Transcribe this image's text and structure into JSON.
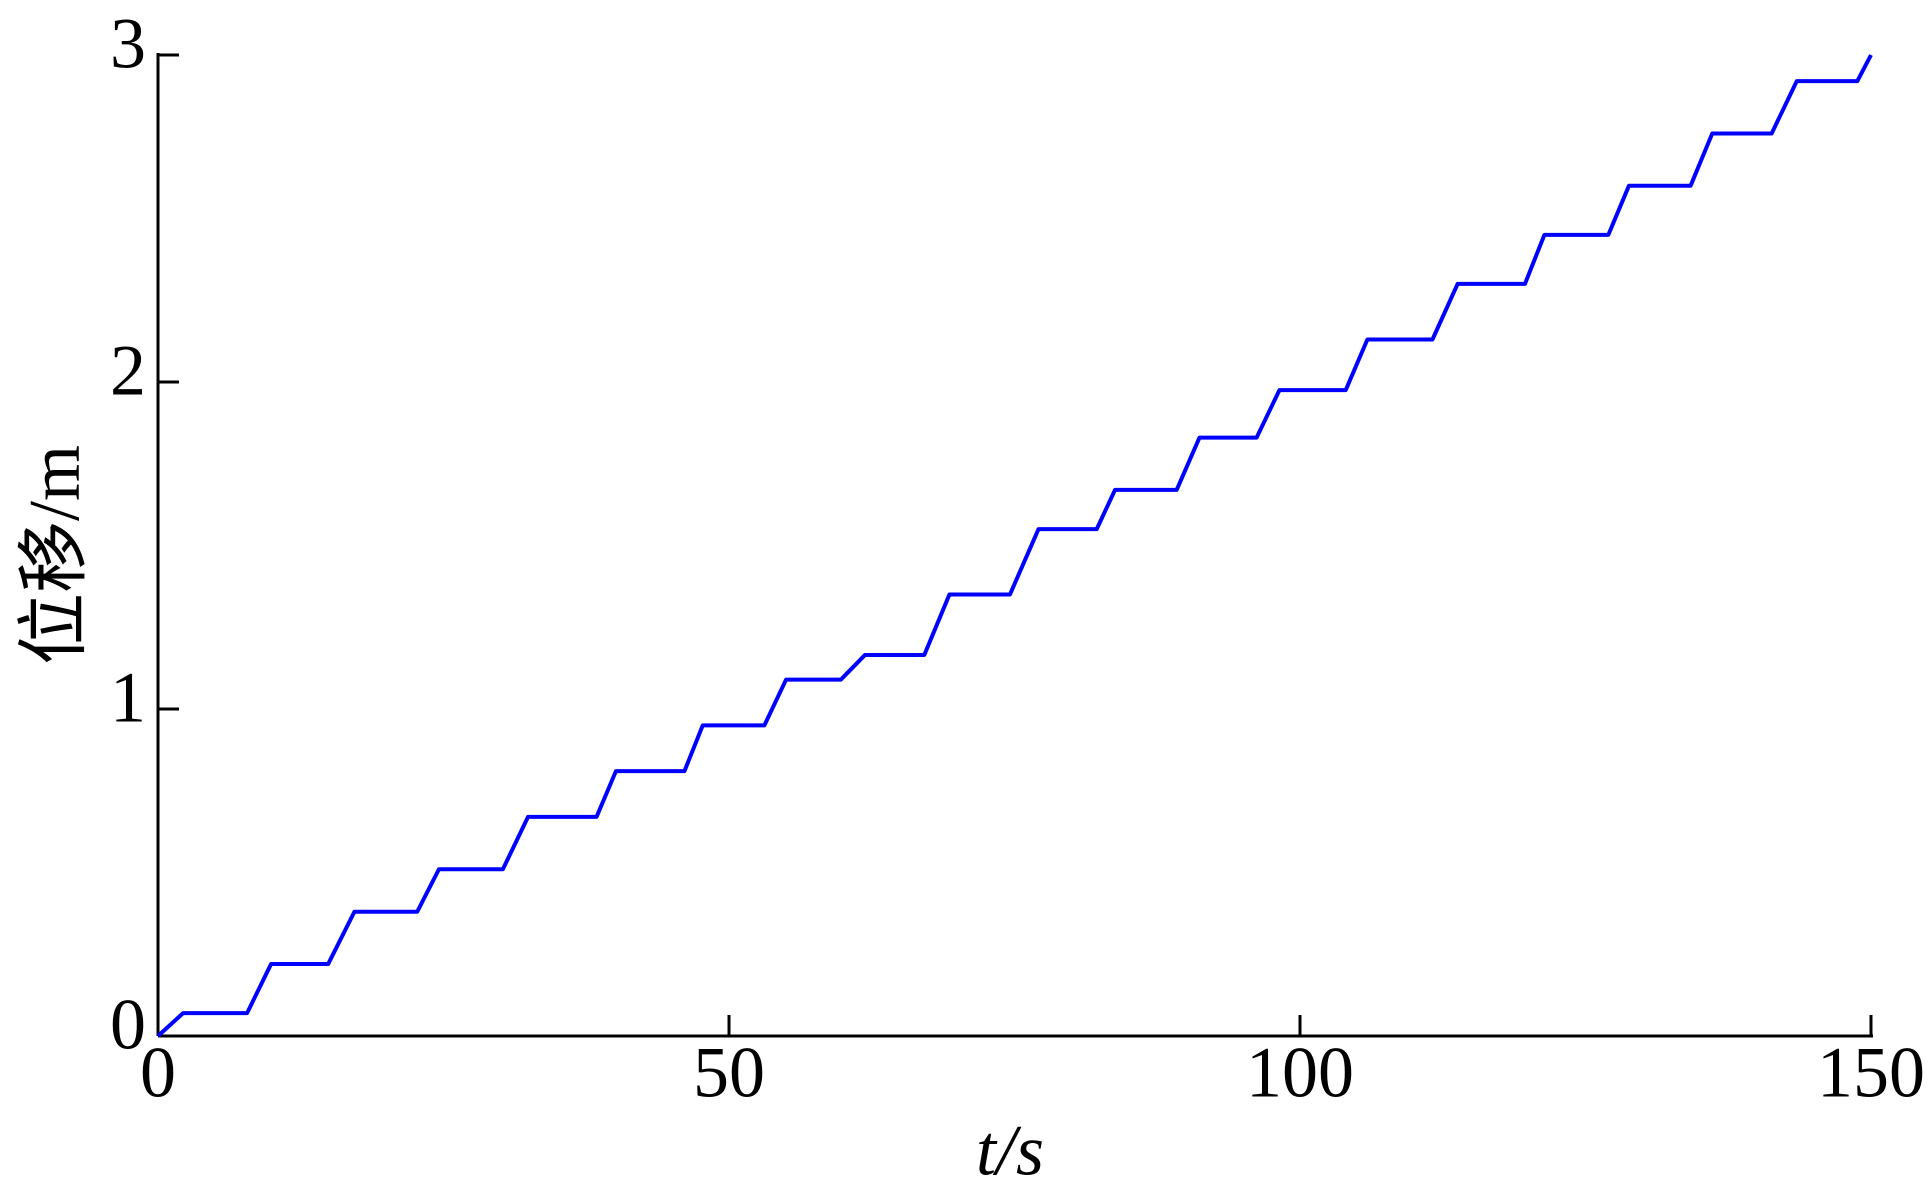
{
  "chart_data": {
    "type": "line",
    "xlabel": "t/s",
    "ylabel": "位移/m",
    "x": [
      0,
      2.2,
      7.8,
      9.9,
      14.9,
      17.2,
      22.7,
      24.6,
      30.2,
      32.4,
      38.4,
      40.1,
      46.1,
      47.7,
      53.1,
      55.0,
      59.8,
      61.9,
      67.1,
      69.3,
      74.6,
      77.1,
      82.2,
      83.8,
      89.2,
      91.2,
      96.2,
      98.2,
      104.0,
      105.9,
      111.6,
      113.8,
      119.7,
      121.4,
      127.0,
      128.8,
      134.2,
      136.1,
      141.3,
      143.5,
      148.8,
      150
    ],
    "series": [
      {
        "color": "#0000ff",
        "values": [
          0,
          0.07,
          0.07,
          0.22,
          0.22,
          0.38,
          0.38,
          0.51,
          0.51,
          0.67,
          0.67,
          0.81,
          0.81,
          0.95,
          0.95,
          1.09,
          1.09,
          1.165,
          1.165,
          1.35,
          1.35,
          1.55,
          1.55,
          1.67,
          1.67,
          1.83,
          1.83,
          1.975,
          1.975,
          2.13,
          2.13,
          2.3,
          2.3,
          2.45,
          2.45,
          2.6,
          2.6,
          2.76,
          2.76,
          2.92,
          2.92,
          3.0
        ]
      }
    ],
    "xlim": [
      0,
      150
    ],
    "xticks": [
      0,
      50,
      100,
      150
    ],
    "ylim": [
      0,
      3
    ],
    "yticks": [
      0,
      1,
      2,
      3
    ],
    "grid": false
  }
}
